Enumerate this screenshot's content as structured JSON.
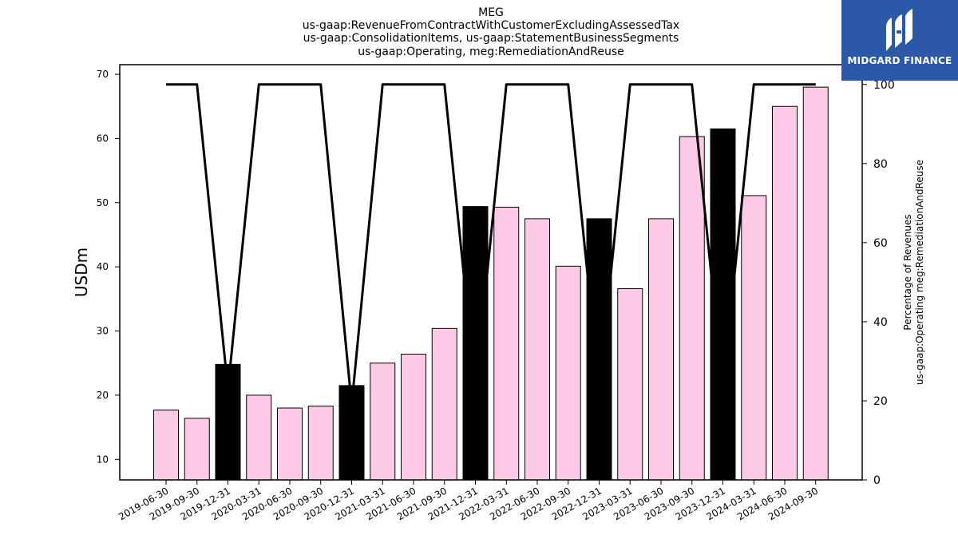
{
  "logo": {
    "text": "MIDGARD FINANCE",
    "color": "#2b59a8"
  },
  "chart_data": {
    "type": "bar",
    "title_lines": [
      "MEG",
      "us-gaap:RevenueFromContractWithCustomerExcludingAssessedTax",
      "us-gaap:ConsolidationItems, us-gaap:StatementBusinessSegments",
      "us-gaap:Operating, meg:RemediationAndReuse"
    ],
    "ylabel": "USDm",
    "y2label_lines": [
      "Percentage of Revenues",
      "us-gaap:Operating meg:RemediationAndReuse"
    ],
    "ylim": [
      6.8,
      71.5
    ],
    "yticks": [
      10,
      20,
      30,
      40,
      50,
      60,
      70
    ],
    "y2lim": [
      0,
      105
    ],
    "y2ticks": [
      0,
      20,
      40,
      60,
      80,
      100
    ],
    "categories": [
      "2019-06-30",
      "2019-09-30",
      "2019-12-31",
      "2020-03-31",
      "2020-06-30",
      "2020-09-30",
      "2020-12-31",
      "2021-03-31",
      "2021-06-30",
      "2021-09-30",
      "2021-12-31",
      "2022-03-31",
      "2022-06-30",
      "2022-09-30",
      "2022-12-31",
      "2023-03-31",
      "2023-06-30",
      "2023-09-30",
      "2023-12-31",
      "2024-03-31",
      "2024-06-30",
      "2024-09-30"
    ],
    "values": [
      17.7,
      16.4,
      24.8,
      20.0,
      18.0,
      18.3,
      21.5,
      25.0,
      26.4,
      30.4,
      49.4,
      49.3,
      47.5,
      40.1,
      47.5,
      36.6,
      47.5,
      60.3,
      61.5,
      51.1,
      65.0,
      68.0
    ],
    "bar_colors": [
      "#fccae6",
      "#fccae6",
      "#000000",
      "#fccae6",
      "#fccae6",
      "#fccae6",
      "#000000",
      "#fccae6",
      "#fccae6",
      "#fccae6",
      "#000000",
      "#fccae6",
      "#fccae6",
      "#fccae6",
      "#000000",
      "#fccae6",
      "#fccae6",
      "#fccae6",
      "#000000",
      "#fccae6",
      "#fccae6",
      "#fccae6"
    ],
    "percentage": [
      100,
      100,
      23,
      100,
      100,
      100,
      19,
      100,
      100,
      100,
      23,
      100,
      100,
      100,
      23,
      100,
      100,
      100,
      23,
      100,
      100,
      100
    ],
    "line_color": "#000000",
    "grid": false,
    "legend": "none"
  }
}
